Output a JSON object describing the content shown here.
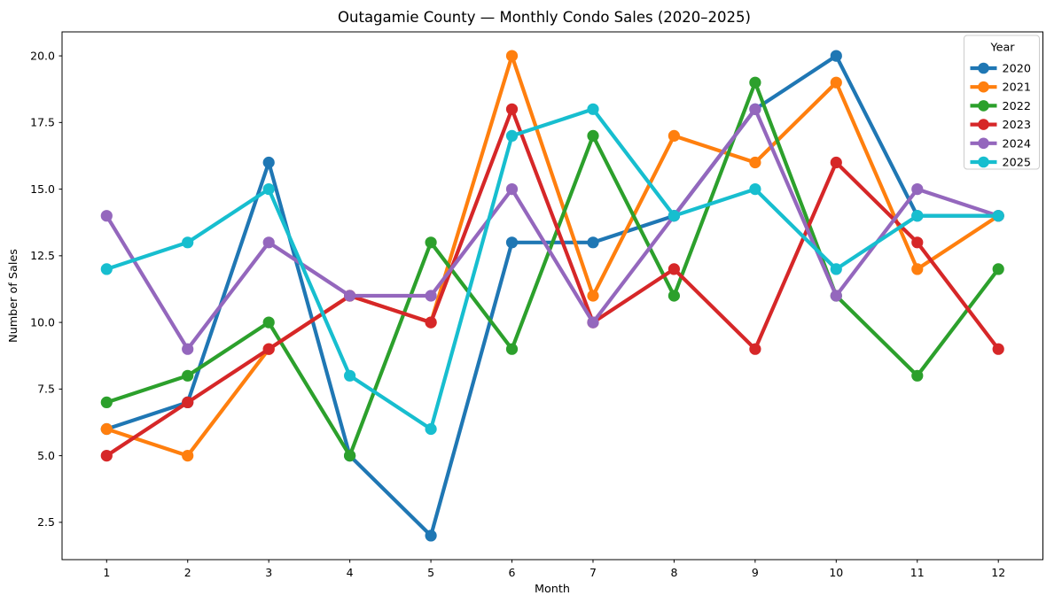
{
  "chart_data": {
    "type": "line",
    "title": "Outagamie County — Monthly Condo Sales (2020–2025)",
    "xlabel": "Month",
    "ylabel": "Number of Sales",
    "legend_title": "Year",
    "legend_position": "upper right",
    "grid": false,
    "x": [
      1,
      2,
      3,
      4,
      5,
      6,
      7,
      8,
      9,
      10,
      11,
      12
    ],
    "xtick_labels": [
      "1",
      "2",
      "3",
      "4",
      "5",
      "6",
      "7",
      "8",
      "9",
      "10",
      "11",
      "12"
    ],
    "ytick_values": [
      2.5,
      5.0,
      7.5,
      10.0,
      12.5,
      15.0,
      17.5,
      20.0
    ],
    "ytick_labels": [
      "2.5",
      "5.0",
      "7.5",
      "10.0",
      "12.5",
      "15.0",
      "17.5",
      "20.0"
    ],
    "xlim": [
      0.45,
      12.55
    ],
    "ylim": [
      1.1,
      20.9
    ],
    "series": [
      {
        "name": "2020",
        "color": "#1f77b4",
        "values": [
          6,
          7,
          16,
          5,
          2,
          13,
          13,
          14,
          18,
          20,
          14,
          14
        ]
      },
      {
        "name": "2021",
        "color": "#ff7f0e",
        "values": [
          6,
          5,
          9,
          11,
          10,
          20,
          11,
          17,
          16,
          19,
          12,
          14
        ]
      },
      {
        "name": "2022",
        "color": "#2ca02c",
        "values": [
          7,
          8,
          10,
          5,
          13,
          9,
          17,
          11,
          19,
          11,
          8,
          12
        ]
      },
      {
        "name": "2023",
        "color": "#d62728",
        "values": [
          5,
          7,
          9,
          11,
          10,
          18,
          10,
          12,
          9,
          16,
          13,
          9
        ]
      },
      {
        "name": "2024",
        "color": "#9467bd",
        "values": [
          14,
          9,
          13,
          11,
          11,
          15,
          10,
          14,
          18,
          11,
          15,
          14
        ]
      },
      {
        "name": "2025",
        "color": "#17becf",
        "values": [
          12,
          13,
          15,
          8,
          6,
          17,
          18,
          14,
          15,
          12,
          14,
          14
        ]
      }
    ]
  },
  "frame": {
    "background": "#ffffff",
    "spine_color": "#000000",
    "legend_border_color": "#cccccc"
  }
}
